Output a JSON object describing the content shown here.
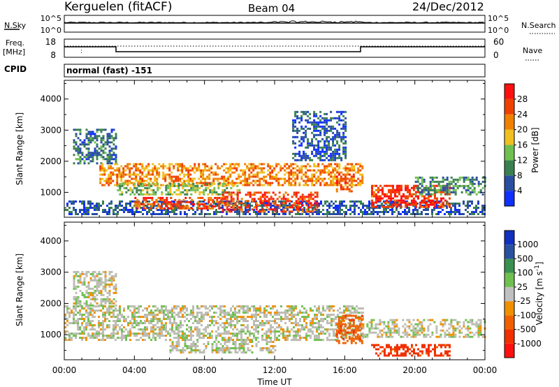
{
  "header": {
    "station": "Kerguelen (fitACF)",
    "beam": "Beam 04",
    "date": "24/Dec/2012"
  },
  "nsky_panel": {
    "left_label": "N.Sky",
    "left_ticks": [
      "10^5",
      "10^0"
    ],
    "right_label": "N.Search",
    "right_ticks": [
      "10^5",
      "10^0"
    ]
  },
  "freq_panel": {
    "left_label_line1": "Freq.",
    "left_label_line2": "[MHz]",
    "left_ticks": [
      "18",
      "8"
    ],
    "right_label": "Nave",
    "right_ticks": [
      "60",
      "0"
    ]
  },
  "cpid": {
    "label": "CPID",
    "value": "normal (fast) -151"
  },
  "x_axis": {
    "tick_labels": [
      "00:00",
      "04:00",
      "08:00",
      "12:00",
      "16:00",
      "20:00",
      "00:00"
    ],
    "title": "Time UT"
  },
  "colors": {
    "power_scale": [
      "#1030ff",
      "#2a4ea0",
      "#3a8050",
      "#70c050",
      "#f0c020",
      "#f08000",
      "#f04000",
      "#ff1010"
    ],
    "velocity_scale": [
      "#ff1010",
      "#f03000",
      "#f06000",
      "#f09000",
      "#c0c0c0",
      "#70c050",
      "#3a9050",
      "#2a50a0",
      "#1030c0"
    ],
    "ground_scatter": "#bcbcb4"
  },
  "chart_data": [
    {
      "type": "heatmap",
      "name_hint": "power",
      "xlabel": "",
      "ylabel": "Slant Range [km]",
      "ytick_labels": [
        "1000",
        "2000",
        "3000",
        "4000"
      ],
      "xlim_hours": [
        0,
        24
      ],
      "ylim_km": [
        200,
        4600
      ],
      "colorbar": {
        "label": "Power [dB]",
        "tick_labels": [
          "4",
          "8",
          "12",
          "16",
          "20",
          "24",
          "28"
        ],
        "range": [
          0,
          32
        ]
      },
      "features": [
        {
          "t0": 0.5,
          "t1": 3.0,
          "r0": 1900,
          "r1": 3000,
          "dB": 8
        },
        {
          "t0": 0.0,
          "t1": 24.0,
          "r0": 200,
          "r1": 700,
          "dB": 6
        },
        {
          "t0": 2.0,
          "t1": 17.0,
          "r0": 1200,
          "r1": 1900,
          "dB": 22
        },
        {
          "t0": 3.0,
          "t1": 10.0,
          "r0": 900,
          "r1": 1300,
          "dB": 14
        },
        {
          "t0": 4.0,
          "t1": 9.0,
          "r0": 450,
          "r1": 800,
          "dB": 26
        },
        {
          "t0": 9.0,
          "t1": 14.5,
          "r0": 350,
          "r1": 1000,
          "dB": 27
        },
        {
          "t0": 15.5,
          "t1": 16.5,
          "r0": 1000,
          "r1": 1600,
          "dB": 26
        },
        {
          "t0": 17.5,
          "t1": 22.0,
          "r0": 500,
          "r1": 1200,
          "dB": 28
        },
        {
          "t0": 20.0,
          "t1": 24.0,
          "r0": 900,
          "r1": 1500,
          "dB": 10
        },
        {
          "t0": 13.0,
          "t1": 16.0,
          "r0": 2000,
          "r1": 3600,
          "dB": 6
        }
      ]
    },
    {
      "type": "heatmap",
      "name_hint": "velocity",
      "xlabel": "Time UT",
      "ylabel": "Slant Range [km]",
      "ytick_labels": [
        "1000",
        "2000",
        "3000",
        "4000"
      ],
      "xlim_hours": [
        0,
        24
      ],
      "ylim_km": [
        200,
        4600
      ],
      "colorbar": {
        "label": "Velocity [m s^-1]",
        "tick_labels": [
          "-1000",
          "-500",
          "-100",
          "-25",
          "25",
          "100",
          "500",
          "1000"
        ],
        "range": [
          -1000,
          1000
        ]
      },
      "features": [
        {
          "t0": 0.5,
          "t1": 3.0,
          "r0": 1900,
          "r1": 3000,
          "v": 0
        },
        {
          "t0": 0.0,
          "t1": 17.0,
          "r0": 800,
          "r1": 1900,
          "v": 0
        },
        {
          "t0": 6.0,
          "t1": 12.0,
          "r0": 400,
          "r1": 800,
          "v": 0
        },
        {
          "t0": 15.5,
          "t1": 17.0,
          "r0": 700,
          "r1": 1600,
          "v": -300
        },
        {
          "t0": 17.5,
          "t1": 22.0,
          "r0": 300,
          "r1": 650,
          "v": -400
        },
        {
          "t0": 17.0,
          "t1": 24.0,
          "r0": 900,
          "r1": 1500,
          "v": 0
        }
      ]
    }
  ]
}
